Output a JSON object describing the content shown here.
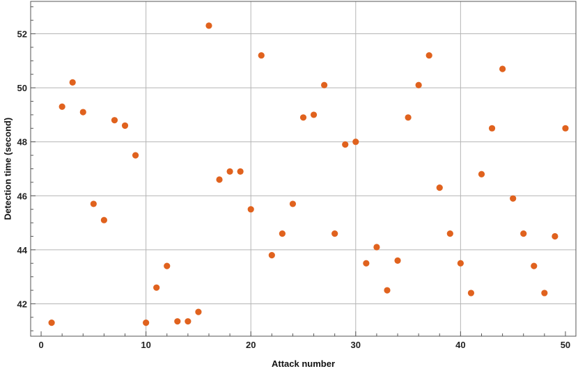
{
  "chart_data": {
    "type": "scatter",
    "xlabel": "Attack number",
    "ylabel": "Detection time (second)",
    "xlim": [
      -1,
      51
    ],
    "ylim": [
      40.8,
      53.2
    ],
    "xticks": [
      0,
      10,
      20,
      30,
      40,
      50
    ],
    "yticks": [
      42,
      44,
      46,
      48,
      50,
      52
    ],
    "grid_x": [
      10,
      20,
      30,
      40
    ],
    "grid_y": [
      42,
      44,
      46,
      48,
      50,
      52
    ],
    "grid": true,
    "marker_color": "#e0621e",
    "series": [
      {
        "points": [
          [
            1,
            41.3
          ],
          [
            2,
            49.3
          ],
          [
            3,
            50.2
          ],
          [
            4,
            49.1
          ],
          [
            5,
            45.7
          ],
          [
            6,
            45.1
          ],
          [
            7,
            48.8
          ],
          [
            8,
            48.6
          ],
          [
            9,
            47.5
          ],
          [
            10,
            41.3
          ],
          [
            11,
            42.6
          ],
          [
            12,
            43.4
          ],
          [
            13,
            41.35
          ],
          [
            14,
            41.35
          ],
          [
            15,
            41.7
          ],
          [
            16,
            52.3
          ],
          [
            17,
            46.6
          ],
          [
            18,
            46.9
          ],
          [
            19,
            46.9
          ],
          [
            20,
            45.5
          ],
          [
            21,
            51.2
          ],
          [
            22,
            43.8
          ],
          [
            23,
            44.6
          ],
          [
            24,
            45.7
          ],
          [
            25,
            48.9
          ],
          [
            26,
            49.0
          ],
          [
            27,
            50.1
          ],
          [
            28,
            44.6
          ],
          [
            29,
            47.9
          ],
          [
            30,
            48.0
          ],
          [
            31,
            43.5
          ],
          [
            32,
            44.1
          ],
          [
            33,
            42.5
          ],
          [
            34,
            43.6
          ],
          [
            35,
            48.9
          ],
          [
            36,
            50.1
          ],
          [
            37,
            51.2
          ],
          [
            38,
            46.3
          ],
          [
            39,
            44.6
          ],
          [
            40,
            43.5
          ],
          [
            41,
            42.4
          ],
          [
            42,
            46.8
          ],
          [
            43,
            48.5
          ],
          [
            44,
            50.7
          ],
          [
            45,
            45.9
          ],
          [
            46,
            44.6
          ],
          [
            47,
            43.4
          ],
          [
            48,
            42.4
          ],
          [
            49,
            44.5
          ],
          [
            50,
            48.5
          ]
        ]
      }
    ]
  }
}
